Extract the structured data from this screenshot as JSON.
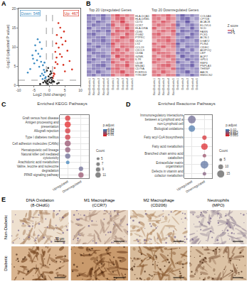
{
  "chart_data": [
    {
      "label": "A",
      "type": "scatter",
      "x_label": "Log2 (fold change)",
      "y_label": "-Log10 (adjusted P value)",
      "xlim": [
        -10,
        10
      ],
      "xticks": [
        -10,
        -5,
        0,
        5,
        10
      ],
      "ylim": [
        0,
        20
      ],
      "yticks": [
        0,
        5,
        10,
        15,
        20
      ],
      "thresholds": {
        "x": [
          -1,
          1
        ],
        "y": 1.3
      },
      "annotations": [
        {
          "text": "Down: 548",
          "color": "#3b8bc2"
        },
        {
          "text": "Up: 467",
          "color": "#d7301f"
        }
      ],
      "series": [
        {
          "color": "#3b8bc2",
          "x": [
            -1.2,
            -1.5,
            -1.8,
            -2.1,
            -2.4,
            -2.7,
            -3.0,
            -3.3,
            -3.6,
            -4.0,
            -4.4,
            -4.9,
            -5.5,
            -6.2,
            -7.0,
            -1.4,
            -1.9,
            -2.5,
            -3.1,
            -3.8,
            -4.6,
            -5.3,
            -2.2,
            -1.6,
            -2.9
          ],
          "y": [
            2.1,
            3.4,
            4.0,
            5.2,
            3.0,
            6.1,
            7.5,
            4.8,
            8.2,
            6.5,
            9.0,
            5.7,
            7.8,
            4.2,
            3.3,
            1.8,
            2.6,
            9.5,
            11.2,
            12.0,
            10.4,
            6.9,
            1.6,
            5.9,
            2.4
          ]
        },
        {
          "color": "#d7301f",
          "x": [
            1.1,
            1.4,
            1.7,
            2.0,
            2.3,
            2.6,
            3.0,
            3.4,
            3.8,
            4.2,
            4.7,
            5.2,
            5.8,
            6.5,
            7.3,
            1.3,
            1.9,
            2.4,
            2.9,
            3.5,
            4.0,
            4.5,
            1.6,
            2.2,
            5.0
          ],
          "y": [
            1.9,
            3.1,
            4.5,
            6.0,
            7.2,
            5.5,
            9.8,
            8.1,
            12.4,
            10.6,
            14.0,
            11.5,
            9.0,
            6.3,
            4.1,
            2.4,
            8.7,
            13.1,
            16.2,
            15.0,
            7.4,
            5.3,
            2.9,
            10.9,
            3.6
          ]
        },
        {
          "color": "#222222",
          "x": [
            -0.9,
            -0.6,
            -0.3,
            0,
            0.3,
            0.6,
            0.9,
            -0.8,
            -0.5,
            -0.2,
            0.2,
            0.5,
            0.8,
            -2.0,
            -1.5,
            1.5,
            2.5,
            -3.0,
            3.0,
            -0.4,
            0.4,
            -0.7,
            0.7,
            -1.2,
            1.2
          ],
          "y": [
            0.5,
            1.2,
            2.3,
            0.8,
            1.9,
            3.1,
            0.9,
            3.8,
            0.3,
            1.5,
            2.8,
            0.6,
            2.0,
            0.7,
            1.1,
            0.9,
            0.4,
            0.3,
            0.6,
            4.5,
            3.6,
            1.0,
            1.4,
            0.8,
            1.1
          ]
        }
      ]
    },
    {
      "label": "B",
      "type": "heatmap",
      "samples": [
        "NonDiabetic1",
        "NonDiabetic2",
        "NonDiabetic3",
        "NonDiabetic4",
        "NonDiabetic5",
        "Diabetic1",
        "Diabetic2",
        "Diabetic3",
        "Diabetic4",
        "Diabetic5"
      ],
      "colorbar": {
        "title": "Z score",
        "range": [
          -1.5,
          1.5
        ],
        "ticks": [
          -1,
          0,
          1
        ]
      },
      "panels": [
        {
          "title": "Top 20 Upregulated Genes",
          "genes": [
            "HLA-DQA1",
            "HLA-DRB5",
            "CD74",
            "CCR7",
            "HLA-DRA",
            "CD86",
            "ITGB2",
            "PTPRC",
            "CD52",
            "LYZ",
            "CCL19",
            "CXCL9",
            "CD8A",
            "GZMK",
            "IL7R",
            "CD3E",
            "MS4A1",
            "CD79A",
            "FCER1G",
            "TYROBP"
          ],
          "values": [
            [
              -1.1,
              -0.8,
              -0.9,
              -1.2,
              -0.7,
              0.9,
              1.3,
              0.8,
              1.0,
              0.7
            ],
            [
              -0.9,
              -1.0,
              -0.6,
              -1.1,
              -0.8,
              0.7,
              1.1,
              1.2,
              0.6,
              0.8
            ],
            [
              -1.0,
              -0.7,
              -1.2,
              -0.9,
              -0.6,
              1.0,
              0.8,
              1.4,
              0.7,
              0.5
            ],
            [
              -0.8,
              -1.1,
              -0.9,
              -0.7,
              -1.0,
              1.2,
              0.6,
              0.9,
              1.1,
              0.7
            ],
            [
              -1.2,
              -0.6,
              -0.8,
              -1.0,
              -0.9,
              0.8,
              1.0,
              0.7,
              1.3,
              0.7
            ],
            [
              -0.7,
              -0.9,
              -1.1,
              -0.8,
              -1.2,
              0.6,
              1.2,
              1.0,
              0.9,
              1.0
            ],
            [
              -1.0,
              -1.2,
              -0.7,
              -0.6,
              -0.9,
              1.1,
              0.9,
              0.6,
              1.2,
              0.8
            ],
            [
              -0.9,
              -0.8,
              -1.0,
              -1.1,
              -0.7,
              0.7,
              0.8,
              1.3,
              1.0,
              0.7
            ],
            [
              -0.6,
              -1.0,
              -0.9,
              -1.2,
              -0.8,
              0.9,
              1.1,
              0.8,
              0.7,
              1.0
            ],
            [
              -1.1,
              -0.7,
              -0.8,
              -0.9,
              -1.0,
              1.3,
              0.7,
              0.9,
              0.8,
              0.8
            ],
            [
              -0.8,
              -0.9,
              -1.2,
              -0.7,
              -0.9,
              1.0,
              0.6,
              1.1,
              0.9,
              0.9
            ],
            [
              -1.2,
              -1.0,
              -0.6,
              -0.8,
              -0.7,
              0.8,
              1.2,
              0.7,
              1.1,
              0.5
            ],
            [
              -0.7,
              -1.1,
              -1.0,
              -0.9,
              -0.6,
              1.1,
              0.9,
              1.0,
              0.6,
              0.7
            ],
            [
              -1.0,
              -0.6,
              -0.9,
              -1.1,
              -0.9,
              0.6,
              1.3,
              0.8,
              1.0,
              0.8
            ],
            [
              -0.9,
              -1.2,
              -0.8,
              -0.6,
              -1.0,
              0.9,
              0.7,
              1.2,
              0.8,
              0.9
            ],
            [
              -1.1,
              -0.8,
              -0.7,
              -1.0,
              -0.8,
              1.2,
              0.8,
              0.6,
              1.1,
              0.7
            ],
            [
              -0.6,
              -0.9,
              -1.1,
              -1.2,
              -0.7,
              0.7,
              1.0,
              0.9,
              1.3,
              0.6
            ],
            [
              -0.8,
              -1.0,
              -0.9,
              -0.7,
              -1.1,
              1.0,
              1.1,
              0.7,
              0.8,
              0.9
            ],
            [
              -1.0,
              -0.7,
              -1.2,
              -0.8,
              -0.6,
              0.8,
              0.9,
              1.3,
              0.7,
              0.8
            ],
            [
              -0.9,
              -1.1,
              -0.6,
              -1.0,
              -0.9,
              1.1,
              0.6,
              0.8,
              1.2,
              0.8
            ]
          ]
        },
        {
          "title": "Top 20 Downregulated Genes",
          "genes": [
            "COL6A6",
            "CPT1B",
            "ACACB",
            "ELOVL6",
            "SCD",
            "FASN",
            "PCK1",
            "ACSL1",
            "DGAT2",
            "PLIN4",
            "CIDEC",
            "ADIPOQ",
            "LEP",
            "AQP7",
            "GPD1",
            "RBP4",
            "PNPLA3",
            "THRSP",
            "AACS",
            "HMGCS2"
          ],
          "values": [
            [
              1.1,
              0.8,
              0.9,
              1.2,
              0.7,
              -0.9,
              -1.3,
              -0.8,
              -1.0,
              -0.7
            ],
            [
              0.9,
              1.0,
              0.6,
              1.1,
              0.8,
              -0.7,
              -1.1,
              -1.2,
              -0.6,
              -0.8
            ],
            [
              1.0,
              0.7,
              1.2,
              0.9,
              0.6,
              -1.0,
              -0.8,
              -1.4,
              -0.7,
              -0.5
            ],
            [
              0.8,
              1.1,
              0.9,
              0.7,
              1.0,
              -1.2,
              -0.6,
              -0.9,
              -1.1,
              -0.7
            ],
            [
              1.2,
              0.6,
              0.8,
              1.0,
              0.9,
              -0.8,
              -1.0,
              -0.7,
              -1.3,
              -0.7
            ],
            [
              0.7,
              0.9,
              1.1,
              0.8,
              1.2,
              -0.6,
              -1.2,
              -1.0,
              -0.9,
              -1.0
            ],
            [
              1.0,
              1.2,
              0.7,
              0.6,
              0.9,
              -1.1,
              -0.9,
              -0.6,
              -1.2,
              -0.8
            ],
            [
              0.9,
              0.8,
              1.0,
              1.1,
              0.7,
              -0.7,
              -0.8,
              -1.3,
              -1.0,
              -0.7
            ],
            [
              0.6,
              1.0,
              0.9,
              1.2,
              0.8,
              -0.9,
              -1.1,
              -0.8,
              -0.7,
              -1.0
            ],
            [
              1.1,
              0.7,
              0.8,
              0.9,
              1.0,
              -1.3,
              -0.7,
              -0.9,
              -0.8,
              -0.8
            ],
            [
              0.8,
              0.9,
              1.2,
              0.7,
              0.9,
              -1.0,
              -0.6,
              -1.1,
              -0.9,
              -0.9
            ],
            [
              1.2,
              1.0,
              0.6,
              0.8,
              0.7,
              -0.8,
              -1.2,
              -0.7,
              -1.1,
              -0.5
            ],
            [
              0.7,
              1.1,
              1.0,
              0.9,
              0.6,
              -1.1,
              -0.9,
              -1.0,
              -0.6,
              -0.7
            ],
            [
              1.0,
              0.6,
              0.9,
              1.1,
              0.9,
              -0.6,
              -1.3,
              -0.8,
              -1.0,
              -0.8
            ],
            [
              0.9,
              1.2,
              0.8,
              0.6,
              1.0,
              -0.9,
              -0.7,
              -1.2,
              -0.8,
              -0.9
            ],
            [
              1.1,
              0.8,
              0.7,
              1.0,
              0.8,
              -1.2,
              -0.8,
              -0.6,
              -1.1,
              -0.7
            ],
            [
              0.6,
              0.9,
              1.1,
              1.2,
              0.7,
              -0.7,
              -1.0,
              -0.9,
              -1.3,
              -0.6
            ],
            [
              0.8,
              1.0,
              0.9,
              0.7,
              1.1,
              -1.0,
              -1.1,
              -0.7,
              -0.8,
              -0.9
            ],
            [
              1.0,
              0.7,
              1.2,
              0.8,
              0.6,
              -0.8,
              -0.9,
              -1.3,
              -0.7,
              -0.8
            ],
            [
              0.9,
              1.1,
              0.6,
              1.0,
              0.9,
              -1.1,
              -0.6,
              -0.8,
              -1.2,
              -0.8
            ]
          ]
        }
      ]
    },
    {
      "label": "C",
      "type": "dot",
      "title": "Enriched KEGG Pathways",
      "x_categories": [
        "Upregulated",
        "Downregulated"
      ],
      "categories": [
        "Graft versus host disease",
        "Antigen processing and presentation",
        "Allograft rejection",
        "Type I diabetes mellitus",
        "Cell adhesion molecules (CAMs)",
        "Hematopoietic cell lineage",
        "Natural killer cell mediated cytotoxicity",
        "Arachidonic acid metabolism",
        "Valine, leucine and isoleucine degradation",
        "PPAR signaling pathway"
      ],
      "x": [
        "Upregulated",
        "Upregulated",
        "Upregulated",
        "Upregulated",
        "Upregulated",
        "Upregulated",
        "Upregulated",
        "Upregulated",
        "Downregulated",
        "Downregulated"
      ],
      "counts": [
        9,
        11,
        9,
        9,
        11,
        9,
        9,
        5,
        7,
        9
      ],
      "p_adjust": [
        0.005,
        0.002,
        0.006,
        0.008,
        0.02,
        0.022,
        0.03,
        0.04,
        0.03,
        0.02
      ],
      "colorbar": {
        "title": "p.adjust",
        "range": [
          0.002,
          0.04
        ],
        "ticks": [
          0.01,
          0.02,
          0.03,
          0.04
        ]
      },
      "size_legend": {
        "title": "Count",
        "ticks": [
          5,
          7,
          9,
          11
        ]
      }
    },
    {
      "label": "D",
      "type": "dot",
      "title": "Enriched Reactome Pathways",
      "x_categories": [
        "Upregulated",
        "Downregulated"
      ],
      "categories": [
        "Immunoregulatory interactions between a Lymphoid and a non-Lymphoid cell",
        "Biological oxidations",
        "Fatty acyl-CoA biosynthesis",
        "Fatty acid metabolism",
        "Branched chain amino acid catabolism",
        "Extracellular matrix organization",
        "Defects in vitamin and cofactor metabolism"
      ],
      "x": [
        "Upregulated",
        "Upregulated",
        "Downregulated",
        "Downregulated",
        "Downregulated",
        "Downregulated",
        "Downregulated"
      ],
      "counts": [
        15,
        12,
        7,
        12,
        5,
        15,
        5
      ],
      "p_adjust": [
        0.018,
        0.022,
        0.004,
        0.003,
        0.012,
        0.02,
        0.015
      ],
      "colorbar": {
        "title": "p.adjust",
        "range": [
          0.002,
          0.024
        ],
        "ticks": [
          0.005,
          0.01,
          0.015,
          0.02
        ]
      },
      "size_legend": {
        "title": "Count",
        "ticks": [
          5,
          10,
          15
        ]
      }
    }
  ],
  "figure_e": {
    "label": "E",
    "columns": [
      "DNA Oxidation (8-OHdG)",
      "M1 Macrophage (CCR7)",
      "M2 Macrophage (CD206)",
      "Neutrophils (MPO)"
    ],
    "rows": [
      "Non-Diabetic",
      "Diabetic"
    ],
    "scale_bar": "50 μm"
  }
}
